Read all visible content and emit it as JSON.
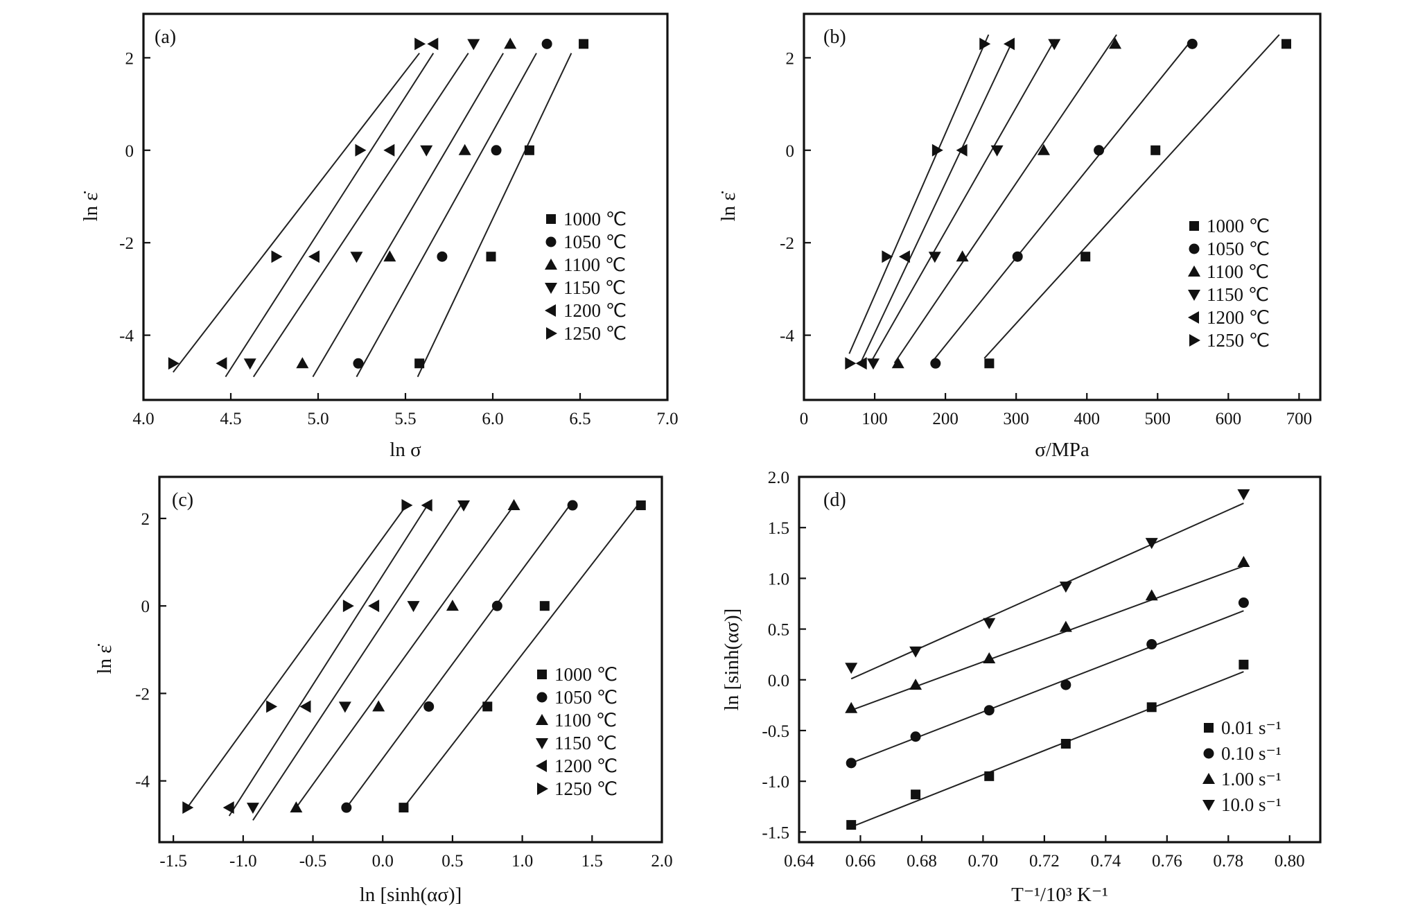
{
  "colors": {
    "ink": "#111111",
    "background": "#ffffff"
  },
  "chart_data": [
    {
      "type": "scatter",
      "panel": "(a)",
      "xlabel": "ln σ",
      "ylabel": "ln ε̇",
      "xlim": [
        4.0,
        7.0
      ],
      "ylim": [
        -5.4,
        2.95
      ],
      "xticks": [
        "4.0",
        "4.5",
        "5.0",
        "5.5",
        "6.0",
        "6.5",
        "7.0"
      ],
      "yticks": [
        "-4",
        "-2",
        "0",
        "2"
      ],
      "grid": false,
      "legend_position": "right",
      "series": [
        {
          "name": "1000 ℃",
          "marker": "square",
          "x": [
            5.58,
            5.99,
            6.21,
            6.52
          ],
          "y": [
            -4.61,
            -2.3,
            0.0,
            2.3
          ],
          "fit": [
            [
              5.57,
              -4.9
            ],
            [
              6.45,
              2.1
            ]
          ]
        },
        {
          "name": "1050 ℃",
          "marker": "circle",
          "x": [
            5.23,
            5.71,
            6.02,
            6.31
          ],
          "y": [
            -4.61,
            -2.3,
            0.0,
            2.3
          ],
          "fit": [
            [
              5.22,
              -4.9
            ],
            [
              6.25,
              2.1
            ]
          ]
        },
        {
          "name": "1100 ℃",
          "marker": "triangle-up",
          "x": [
            4.91,
            5.41,
            5.84,
            6.1
          ],
          "y": [
            -4.61,
            -2.3,
            0.0,
            2.3
          ],
          "fit": [
            [
              4.97,
              -4.9
            ],
            [
              6.06,
              2.1
            ]
          ]
        },
        {
          "name": "1150 ℃",
          "marker": "triangle-down",
          "x": [
            4.61,
            5.22,
            5.62,
            5.89
          ],
          "y": [
            -4.61,
            -2.3,
            0.0,
            2.3
          ],
          "fit": [
            [
              4.63,
              -4.9
            ],
            [
              5.86,
              2.1
            ]
          ]
        },
        {
          "name": "1200 ℃",
          "marker": "triangle-left",
          "x": [
            4.45,
            4.98,
            5.41,
            5.66
          ],
          "y": [
            -4.61,
            -2.3,
            0.0,
            2.3
          ],
          "fit": [
            [
              4.47,
              -4.9
            ],
            [
              5.66,
              2.1
            ]
          ]
        },
        {
          "name": "1250 ℃",
          "marker": "triangle-right",
          "x": [
            4.17,
            4.76,
            5.24,
            5.58
          ],
          "y": [
            -4.61,
            -2.3,
            0.0,
            2.3
          ],
          "fit": [
            [
              4.17,
              -4.8
            ],
            [
              5.58,
              2.1
            ]
          ]
        }
      ]
    },
    {
      "type": "scatter",
      "panel": "(b)",
      "xlabel": "σ/MPa",
      "ylabel": "ln ε̇",
      "xlim": [
        0,
        730
      ],
      "ylim": [
        -5.4,
        2.95
      ],
      "xticks": [
        "0",
        "100",
        "200",
        "300",
        "400",
        "500",
        "600",
        "700"
      ],
      "yticks": [
        "-4",
        "-2",
        "0",
        "2"
      ],
      "grid": false,
      "legend_position": "right",
      "series": [
        {
          "name": "1000 ℃",
          "marker": "square",
          "x": [
            262,
            398,
            497,
            682
          ],
          "y": [
            -4.61,
            -2.3,
            0.0,
            2.3
          ],
          "fit": [
            [
              255,
              -4.5
            ],
            [
              672,
              2.5
            ]
          ]
        },
        {
          "name": "1050 ℃",
          "marker": "circle",
          "x": [
            186,
            302,
            417,
            549
          ],
          "y": [
            -4.61,
            -2.3,
            0.0,
            2.3
          ],
          "fit": [
            [
              180,
              -4.6
            ],
            [
              549,
              2.4
            ]
          ]
        },
        {
          "name": "1100 ℃",
          "marker": "triangle-up",
          "x": [
            133,
            224,
            339,
            440
          ],
          "y": [
            -4.61,
            -2.3,
            0.0,
            2.3
          ],
          "fit": [
            [
              128,
              -4.6
            ],
            [
              442,
              2.5
            ]
          ]
        },
        {
          "name": "1150 ℃",
          "marker": "triangle-down",
          "x": [
            98,
            185,
            273,
            354
          ],
          "y": [
            -4.61,
            -2.3,
            0.0,
            2.3
          ],
          "fit": [
            [
              94,
              -4.6
            ],
            [
              355,
              2.4
            ]
          ]
        },
        {
          "name": "1200 ℃",
          "marker": "triangle-left",
          "x": [
            82,
            143,
            224,
            291
          ],
          "y": [
            -4.61,
            -2.3,
            0.0,
            2.3
          ],
          "fit": [
            [
              80,
              -4.6
            ],
            [
              293,
              2.3
            ]
          ]
        },
        {
          "name": "1250 ℃",
          "marker": "triangle-right",
          "x": [
            65,
            117,
            188,
            255
          ],
          "y": [
            -4.61,
            -2.3,
            0.0,
            2.3
          ],
          "fit": [
            [
              64,
              -4.4
            ],
            [
              261,
              2.5
            ]
          ]
        }
      ]
    },
    {
      "type": "scatter",
      "panel": "(c)",
      "xlabel": "ln [sinh(ασ)]",
      "ylabel": "ln ε̇",
      "xlim": [
        -1.6,
        2.0
      ],
      "ylim": [
        -5.4,
        2.95
      ],
      "xticks": [
        "-1.5",
        "-1.0",
        "-0.5",
        "0.0",
        "0.5",
        "1.0",
        "1.5",
        "2.0"
      ],
      "yticks": [
        "-4",
        "-2",
        "0",
        "2"
      ],
      "grid": false,
      "legend_position": "right",
      "series": [
        {
          "name": "1000 ℃",
          "marker": "square",
          "x": [
            0.15,
            0.75,
            1.16,
            1.85
          ],
          "y": [
            -4.61,
            -2.3,
            0.0,
            2.3
          ],
          "fit": [
            [
              0.15,
              -4.61
            ],
            [
              1.85,
              2.4
            ]
          ]
        },
        {
          "name": "1050 ℃",
          "marker": "circle",
          "x": [
            -0.26,
            0.33,
            0.82,
            1.36
          ],
          "y": [
            -4.61,
            -2.3,
            0.0,
            2.3
          ],
          "fit": [
            [
              -0.26,
              -4.61
            ],
            [
              1.34,
              2.3
            ]
          ]
        },
        {
          "name": "1100 ℃",
          "marker": "triangle-up",
          "x": [
            -0.62,
            -0.03,
            0.5,
            0.94
          ],
          "y": [
            -4.61,
            -2.3,
            0.0,
            2.3
          ],
          "fit": [
            [
              -0.62,
              -4.61
            ],
            [
              0.94,
              2.3
            ]
          ]
        },
        {
          "name": "1150 ℃",
          "marker": "triangle-down",
          "x": [
            -0.93,
            -0.27,
            0.22,
            0.58
          ],
          "y": [
            -4.61,
            -2.3,
            0.0,
            2.3
          ],
          "fit": [
            [
              -0.93,
              -4.9
            ],
            [
              0.58,
              2.4
            ]
          ]
        },
        {
          "name": "1200 ℃",
          "marker": "triangle-left",
          "x": [
            -1.1,
            -0.55,
            -0.06,
            0.32
          ],
          "y": [
            -4.61,
            -2.3,
            0.0,
            2.3
          ],
          "fit": [
            [
              -1.1,
              -4.8
            ],
            [
              0.32,
              2.3
            ]
          ]
        },
        {
          "name": "1250 ℃",
          "marker": "triangle-right",
          "x": [
            -1.4,
            -0.8,
            -0.25,
            0.17
          ],
          "y": [
            -4.61,
            -2.3,
            0.0,
            2.3
          ],
          "fit": [
            [
              -1.4,
              -4.61
            ],
            [
              0.17,
              2.3
            ]
          ]
        }
      ]
    },
    {
      "type": "scatter",
      "panel": "(d)",
      "xlabel": "T⁻¹/10³ K⁻¹",
      "ylabel": "ln [sinh(ασ)]",
      "xlim": [
        0.64,
        0.81
      ],
      "ylim": [
        -1.6,
        2.0
      ],
      "xticks": [
        "0.64",
        "0.66",
        "0.68",
        "0.70",
        "0.72",
        "0.74",
        "0.76",
        "0.78",
        "0.80"
      ],
      "yticks": [
        "-1.5",
        "-1.0",
        "-0.5",
        "0.0",
        "0.5",
        "1.0",
        "1.5",
        "2.0"
      ],
      "grid": false,
      "legend_position": "bottom-right",
      "series": [
        {
          "name": "0.01 s⁻¹",
          "marker": "square",
          "x": [
            0.657,
            0.678,
            0.702,
            0.727,
            0.755,
            0.785
          ],
          "y": [
            -1.43,
            -1.13,
            -0.95,
            -0.63,
            -0.27,
            0.15
          ],
          "fit": [
            [
              0.657,
              -1.45
            ],
            [
              0.785,
              0.08
            ]
          ]
        },
        {
          "name": "0.10 s⁻¹",
          "marker": "circle",
          "x": [
            0.657,
            0.678,
            0.702,
            0.727,
            0.755,
            0.785
          ],
          "y": [
            -0.82,
            -0.56,
            -0.3,
            -0.05,
            0.35,
            0.76
          ],
          "fit": [
            [
              0.657,
              -0.82
            ],
            [
              0.785,
              0.68
            ]
          ]
        },
        {
          "name": "1.00 s⁻¹",
          "marker": "triangle-up",
          "x": [
            0.657,
            0.678,
            0.702,
            0.727,
            0.755,
            0.785
          ],
          "y": [
            -0.28,
            -0.05,
            0.21,
            0.52,
            0.83,
            1.16
          ],
          "fit": [
            [
              0.657,
              -0.3
            ],
            [
              0.785,
              1.12
            ]
          ]
        },
        {
          "name": "10.0 s⁻¹",
          "marker": "triangle-down",
          "x": [
            0.657,
            0.678,
            0.702,
            0.727,
            0.755,
            0.785
          ],
          "y": [
            0.12,
            0.28,
            0.56,
            0.92,
            1.35,
            1.83
          ],
          "fit": [
            [
              0.657,
              0.01
            ],
            [
              0.785,
              1.74
            ]
          ]
        }
      ]
    }
  ]
}
